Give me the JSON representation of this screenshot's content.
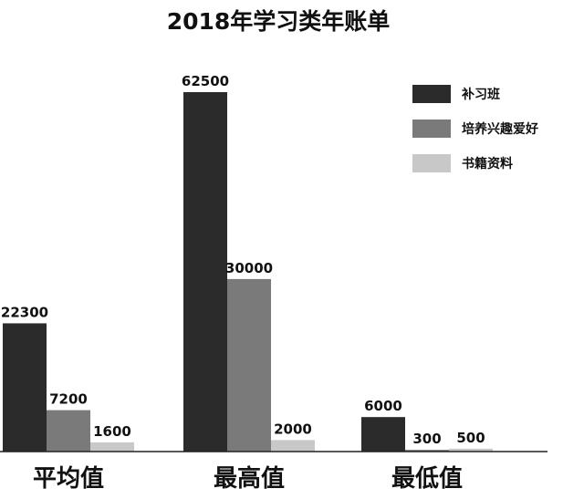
{
  "chart_data": {
    "type": "bar",
    "title": "2018年学习类年账单",
    "categories": [
      "平均值",
      "最高值",
      "最低值"
    ],
    "series": [
      {
        "name": "补习班",
        "values": [
          22300,
          62500,
          6000
        ],
        "color": "#2b2b2b"
      },
      {
        "name": "培养兴趣爱好",
        "values": [
          7200,
          30000,
          300
        ],
        "color": "#7a7a7a"
      },
      {
        "name": "书籍资料",
        "values": [
          1600,
          2000,
          500
        ],
        "color": "#c8c8c8"
      }
    ],
    "legend_position": "top-right",
    "grid": false,
    "ylim": [
      0,
      62500
    ]
  }
}
